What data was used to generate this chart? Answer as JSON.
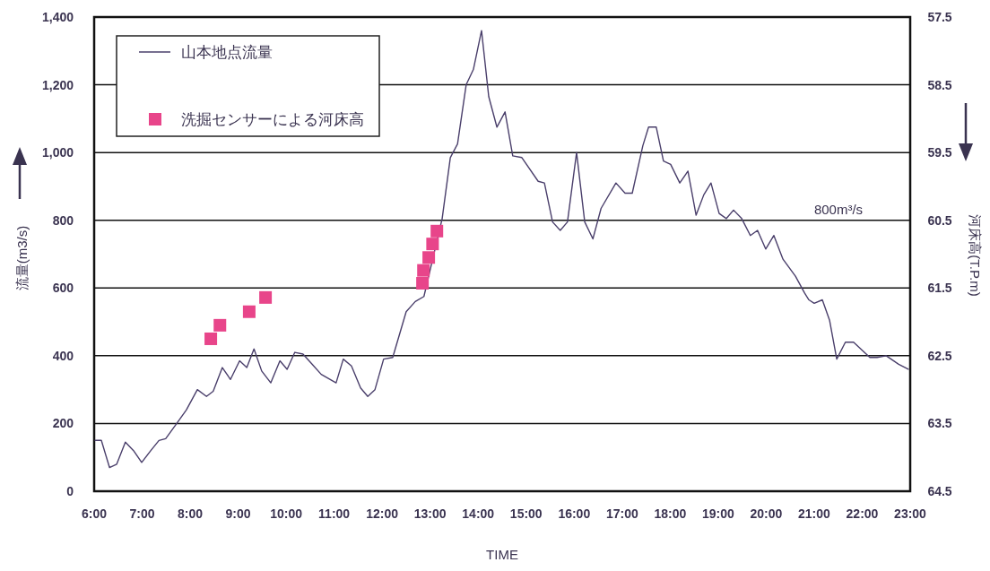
{
  "chart_data": {
    "type": "line",
    "xlabel": "TIME",
    "ylabel": "流量(m3/s)",
    "y2label": "河床高(T.P.m)",
    "series": [
      {
        "name": "山本地点流量",
        "color": "#4a3f6b",
        "marker": "none",
        "line_style": "solid",
        "x": [
          6.02,
          6.15,
          6.32,
          6.47,
          6.65,
          6.82,
          6.99,
          7.18,
          7.35,
          7.49,
          7.72,
          7.92,
          8.15,
          8.34,
          8.48,
          8.67,
          8.84,
          9.03,
          9.18,
          9.33,
          9.49,
          9.68,
          9.87,
          10.02,
          10.18,
          10.35,
          10.54,
          10.73,
          11.04,
          11.19,
          11.36,
          11.55,
          11.7,
          11.85,
          12.03,
          12.22,
          12.5,
          12.69,
          12.87,
          13.25,
          13.42,
          13.57,
          13.75,
          13.9,
          14.07,
          14.22,
          14.39,
          14.56,
          14.72,
          14.91,
          15.25,
          15.38,
          15.55,
          15.71,
          15.86,
          16.05,
          16.22,
          16.39,
          16.56,
          16.87,
          17.06,
          17.21,
          17.43,
          17.55,
          17.71,
          17.86,
          18.01,
          18.2,
          18.37,
          18.54,
          18.7,
          18.85,
          19.02,
          19.17,
          19.32,
          19.49,
          19.67,
          19.82,
          19.99,
          20.16,
          20.35,
          20.61,
          20.8,
          20.89,
          21.0,
          21.17,
          21.32,
          21.47,
          21.65,
          21.82,
          22.16,
          22.31,
          22.5,
          22.76,
          22.96
        ],
        "values": [
          150,
          150,
          70,
          80,
          145,
          120,
          85,
          120,
          150,
          155,
          200,
          240,
          300,
          280,
          295,
          365,
          330,
          385,
          365,
          420,
          355,
          320,
          385,
          360,
          410,
          405,
          375,
          345,
          320,
          390,
          370,
          305,
          280,
          300,
          390,
          395,
          530,
          560,
          575,
          805,
          985,
          1025,
          1200,
          1245,
          1360,
          1165,
          1075,
          1120,
          990,
          985,
          915,
          910,
          795,
          770,
          795,
          1000,
          795,
          745,
          835,
          910,
          880,
          880,
          1020,
          1075,
          1075,
          975,
          965,
          910,
          945,
          815,
          875,
          910,
          820,
          805,
          830,
          805,
          755,
          770,
          715,
          755,
          685,
          635,
          585,
          565,
          555,
          565,
          505,
          390,
          440,
          440,
          395,
          395,
          400,
          375,
          360
        ]
      },
      {
        "name": "洗掘センサーによる河床高",
        "type": "scatter",
        "axis": "y2",
        "color": "#e8458a",
        "marker": "square",
        "x": [
          8.43,
          8.62,
          9.23,
          9.57,
          12.84,
          12.86,
          12.97,
          13.05,
          13.14
        ],
        "values": [
          62.25,
          62.05,
          61.85,
          61.64,
          61.43,
          61.24,
          61.05,
          60.85,
          60.66
        ]
      }
    ],
    "xlim": [
      6,
      23
    ],
    "xticks": [
      {
        "value": 6,
        "label": "6:00"
      },
      {
        "value": 7,
        "label": "7:00"
      },
      {
        "value": 8,
        "label": "8:00"
      },
      {
        "value": 9,
        "label": "9:00"
      },
      {
        "value": 10,
        "label": "10:00"
      },
      {
        "value": 11,
        "label": "11:00"
      },
      {
        "value": 12,
        "label": "12:00"
      },
      {
        "value": 13,
        "label": "13:00"
      },
      {
        "value": 14,
        "label": "14:00"
      },
      {
        "value": 15,
        "label": "15:00"
      },
      {
        "value": 16,
        "label": "16:00"
      },
      {
        "value": 17,
        "label": "17:00"
      },
      {
        "value": 18,
        "label": "18:00"
      },
      {
        "value": 19,
        "label": "19:00"
      },
      {
        "value": 20,
        "label": "20:00"
      },
      {
        "value": 21,
        "label": "21:00"
      },
      {
        "value": 22,
        "label": "22:00"
      },
      {
        "value": 23,
        "label": "23:00"
      }
    ],
    "ylim": [
      0,
      1400
    ],
    "yticks": [
      0,
      200,
      400,
      600,
      800,
      {
        "value": 1000,
        "label": "1,000"
      },
      {
        "value": 1200,
        "label": "1,200"
      },
      {
        "value": 1400,
        "label": "1,400"
      }
    ],
    "y2lim": [
      64.5,
      57.5
    ],
    "y2ticks": [
      57.5,
      58.5,
      59.5,
      60.5,
      61.5,
      62.5,
      63.5,
      64.5
    ],
    "annotations": [
      "800m³/s"
    ],
    "grid": "y",
    "legend": "top left"
  }
}
